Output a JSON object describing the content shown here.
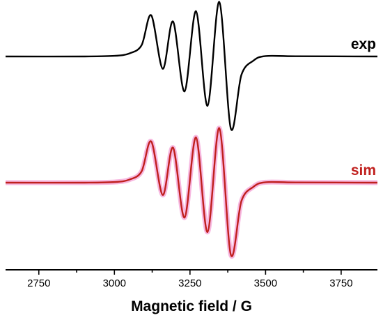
{
  "chart_data": {
    "type": "line",
    "xlabel": "Magnetic field / G",
    "xlim": [
      2640,
      3870
    ],
    "x_ticks": [
      2750,
      3000,
      3250,
      3500,
      3750
    ],
    "x_tick_labels": [
      "2750",
      "3000",
      "3250",
      "3500",
      "3750"
    ],
    "y_axis_visible": false,
    "grid": false,
    "series": [
      {
        "name": "exp",
        "color": "#000000",
        "baseline": 0,
        "x": [
          2640,
          2900,
          3000,
          3050,
          3090,
          3122,
          3160,
          3194,
          3232,
          3270,
          3308,
          3347,
          3385,
          3420,
          3460,
          3500,
          3600,
          3870
        ],
        "y": [
          0,
          0,
          0.3,
          1.5,
          5.5,
          20.0,
          -6.0,
          17.0,
          -17.0,
          22.0,
          -24.0,
          26.5,
          -35.0,
          -9.0,
          -2.0,
          0.2,
          0.1,
          0
        ]
      },
      {
        "name": "sim",
        "color": "#c0201e",
        "glow": "#f7b8e0",
        "baseline": 0,
        "x": [
          2640,
          2900,
          3000,
          3050,
          3090,
          3122,
          3160,
          3194,
          3232,
          3270,
          3308,
          3347,
          3385,
          3420,
          3460,
          3500,
          3600,
          3870
        ],
        "y": [
          0,
          0,
          0.3,
          1.5,
          5.5,
          20.0,
          -6.0,
          17.0,
          -17.0,
          22.0,
          -24.0,
          26.5,
          -35.0,
          -9.0,
          -2.0,
          0.2,
          0.1,
          0
        ]
      }
    ]
  }
}
